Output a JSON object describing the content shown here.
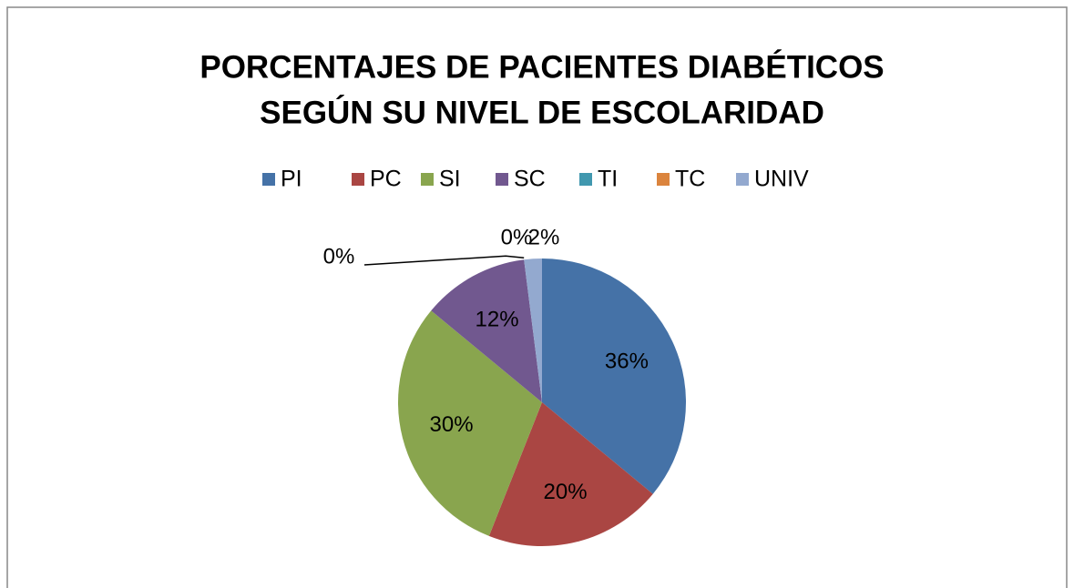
{
  "chart_data": {
    "type": "pie",
    "title": [
      "PORCENTAJES DE PACIENTES DIABÉTICOS",
      "SEGÚN SU NIVEL DE   ESCOLARIDAD"
    ],
    "categories": [
      "PI",
      "PC",
      "SI",
      "SC",
      "TI",
      "TC",
      "UNIV"
    ],
    "values": [
      36,
      20,
      30,
      12,
      0,
      0,
      2
    ],
    "value_labels": [
      "36%",
      "20%",
      "30%",
      "12%",
      "0%",
      "0%",
      "2%"
    ],
    "colors": [
      "#4572a7",
      "#aa4643",
      "#89a54e",
      "#71588f",
      "#4198af",
      "#db843d",
      "#93a9cf"
    ],
    "legend": "top"
  }
}
